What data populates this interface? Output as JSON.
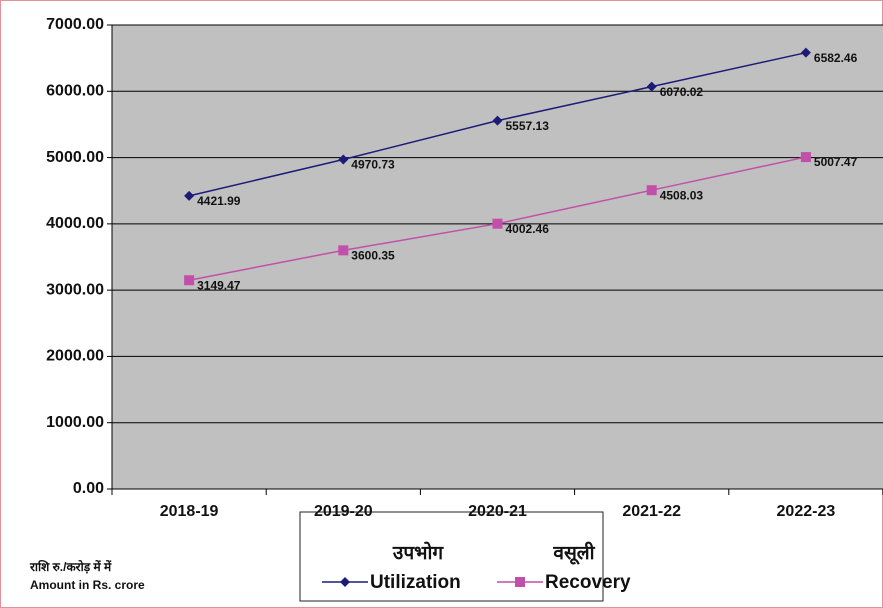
{
  "chart_data": {
    "type": "line",
    "categories": [
      "2018-19",
      "2019-20",
      "2020-21",
      "2021-22",
      "2022-23"
    ],
    "series": [
      {
        "name": "Utilization",
        "color": "#1c1c78",
        "marker": "diamond",
        "values": [
          4421.99,
          4970.73,
          5557.13,
          6070.02,
          6582.46
        ]
      },
      {
        "name": "Recovery",
        "color": "#c24fa9",
        "marker": "square",
        "values": [
          3149.47,
          3600.35,
          4002.46,
          4508.03,
          5007.47
        ]
      }
    ],
    "legend_titles": [
      "उपभोग",
      "वसूली"
    ],
    "notes": [
      "राशि रु./करोड़ में में",
      "Amount in Rs. crore"
    ],
    "ylim": [
      0,
      7000
    ],
    "yticks": [
      {
        "value": 0,
        "label": "0.00"
      },
      {
        "value": 1000,
        "label": "1000.00"
      },
      {
        "value": 2000,
        "label": "2000.00"
      },
      {
        "value": 3000,
        "label": "3000.00"
      },
      {
        "value": 4000,
        "label": "4000.00"
      },
      {
        "value": 5000,
        "label": "5000.00"
      },
      {
        "value": 6000,
        "label": "6000.00"
      },
      {
        "value": 7000,
        "label": "7000.00"
      }
    ],
    "grid": true,
    "legend": "bottom"
  }
}
